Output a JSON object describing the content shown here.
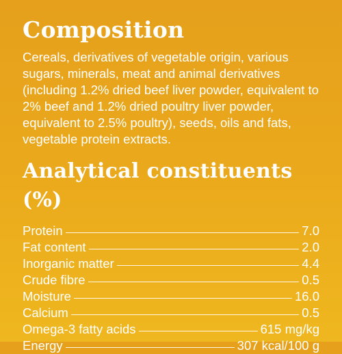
{
  "composition": {
    "title": "Composition",
    "text": "Cereals, derivatives of vegetable origin, various sugars, minerals, meat and animal derivatives (including 1.2% dried beef liver powder, equivalent to 2% beef and 1.2% dried poultry liver powder, equivalent to 2.5% poultry), seeds, oils and fats, vegetable protein extracts."
  },
  "analytical": {
    "title": "Analytical constituents (%)",
    "rows": [
      [
        "Protein",
        "7.0"
      ],
      [
        "Fat content",
        "2.0"
      ],
      [
        "Inorganic matter",
        "4.4"
      ],
      [
        "Crude fibre",
        "0.5"
      ],
      [
        "Moisture",
        "16.0"
      ],
      [
        "Calcium",
        "0.5"
      ],
      [
        "Omega-3 fatty acids",
        "615 mg/kg"
      ],
      [
        "Energy",
        "307 kcal/100 g"
      ]
    ]
  }
}
